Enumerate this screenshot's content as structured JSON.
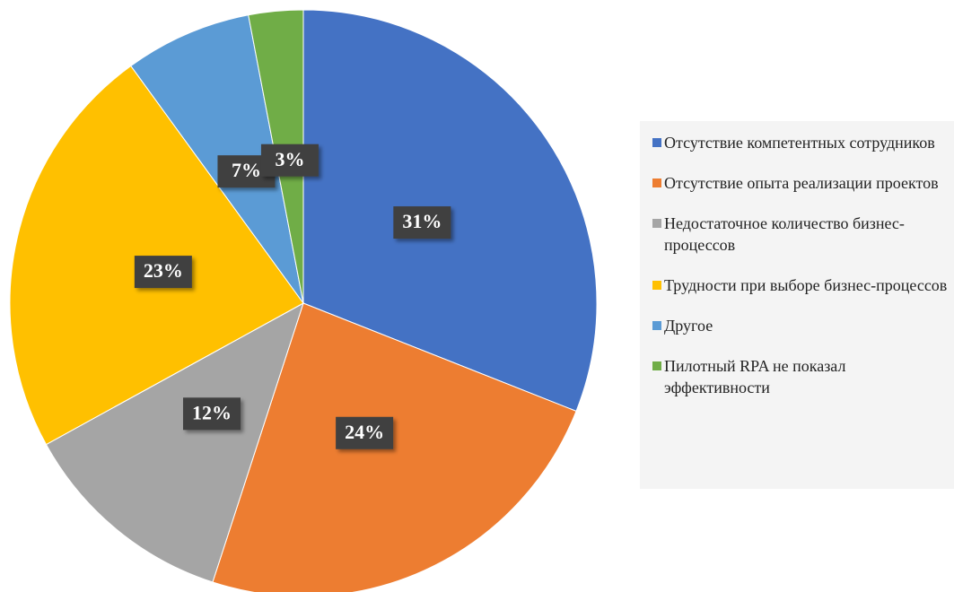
{
  "chart_data": {
    "type": "pie",
    "categories": [
      "Отсутствие компетентных сотрудников",
      "Отсутствие опыта реализации проектов",
      "Недостаточное количество бизнес-процессов",
      "Трудности при выборе бизнес-процессов",
      "Другое",
      "Пилотный RPA не показал эффективности"
    ],
    "values": [
      31,
      24,
      12,
      23,
      7,
      3
    ],
    "value_labels": [
      "31%",
      "24%",
      "12%",
      "23%",
      "7%",
      "3%"
    ],
    "colors": [
      "#4472c4",
      "#ed7d31",
      "#a5a5a5",
      "#ffc000",
      "#5b9bd5",
      "#70ad47"
    ],
    "legend": "right"
  }
}
